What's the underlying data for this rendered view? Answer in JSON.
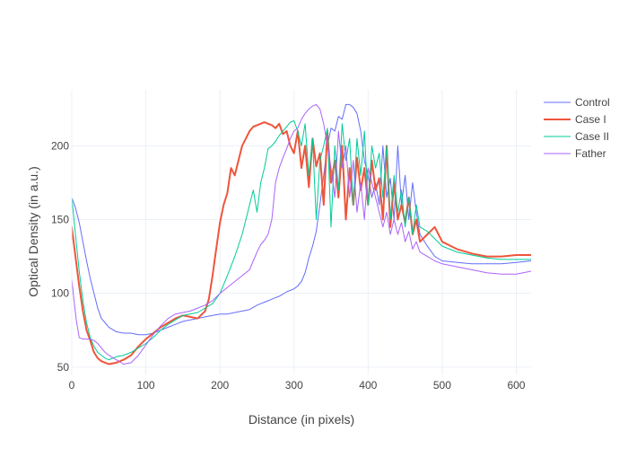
{
  "chart_data": {
    "type": "line",
    "title": "",
    "xlabel": "Distance (in pixels)",
    "ylabel": "Optical Density (in a.u.)",
    "xlim": [
      0,
      620
    ],
    "ylim": [
      45,
      238
    ],
    "xticks": [
      0,
      100,
      200,
      300,
      400,
      500,
      600
    ],
    "yticks": [
      50,
      100,
      150,
      200
    ],
    "grid": true,
    "legend_position": "top-right",
    "series": [
      {
        "name": "Control",
        "color": "#636efa",
        "width": 1,
        "x": [
          0,
          5,
          10,
          15,
          20,
          25,
          30,
          35,
          40,
          45,
          50,
          60,
          70,
          80,
          90,
          100,
          110,
          120,
          130,
          140,
          150,
          160,
          170,
          180,
          190,
          200,
          210,
          220,
          230,
          240,
          250,
          260,
          270,
          280,
          290,
          300,
          305,
          310,
          315,
          320,
          325,
          330,
          335,
          340,
          345,
          350,
          355,
          360,
          365,
          370,
          375,
          380,
          385,
          390,
          395,
          400,
          405,
          410,
          415,
          420,
          425,
          430,
          435,
          440,
          445,
          450,
          455,
          460,
          465,
          470,
          480,
          490,
          500,
          520,
          540,
          560,
          580,
          600,
          620
        ],
        "y": [
          165,
          158,
          148,
          135,
          122,
          110,
          100,
          90,
          83,
          80,
          77,
          74,
          73,
          73,
          72,
          72,
          73,
          75,
          77,
          79,
          81,
          82,
          83,
          84,
          85,
          86,
          86,
          87,
          88,
          89,
          92,
          94,
          96,
          98,
          101,
          103,
          105,
          108,
          114,
          124,
          132,
          142,
          160,
          180,
          200,
          212,
          210,
          220,
          218,
          228,
          228,
          226,
          222,
          210,
          190,
          180,
          165,
          175,
          160,
          200,
          165,
          178,
          150,
          200,
          160,
          180,
          150,
          175,
          155,
          140,
          132,
          125,
          122,
          121,
          120,
          120,
          120,
          121,
          122
        ]
      },
      {
        "name": "Case I",
        "color": "#ef553b",
        "width": 2,
        "x": [
          0,
          5,
          10,
          15,
          20,
          25,
          30,
          35,
          40,
          45,
          50,
          60,
          70,
          80,
          90,
          100,
          110,
          120,
          130,
          140,
          150,
          160,
          170,
          180,
          185,
          190,
          195,
          200,
          205,
          210,
          215,
          220,
          225,
          230,
          235,
          240,
          245,
          250,
          255,
          260,
          265,
          270,
          275,
          280,
          285,
          290,
          295,
          300,
          305,
          310,
          315,
          320,
          325,
          330,
          335,
          340,
          345,
          350,
          355,
          360,
          365,
          370,
          375,
          380,
          385,
          390,
          395,
          400,
          405,
          410,
          415,
          420,
          425,
          430,
          435,
          440,
          445,
          450,
          455,
          460,
          465,
          470,
          480,
          490,
          500,
          520,
          540,
          560,
          580,
          600,
          620
        ],
        "y": [
          145,
          125,
          105,
          88,
          75,
          68,
          60,
          56,
          54,
          53,
          52,
          53,
          55,
          58,
          64,
          69,
          73,
          77,
          80,
          83,
          85,
          84,
          83,
          88,
          96,
          112,
          130,
          148,
          160,
          168,
          185,
          180,
          190,
          200,
          205,
          210,
          213,
          214,
          215,
          216,
          215,
          214,
          212,
          215,
          208,
          210,
          200,
          195,
          210,
          185,
          200,
          172,
          205,
          186,
          195,
          160,
          210,
          175,
          190,
          165,
          200,
          150,
          185,
          160,
          192,
          170,
          185,
          160,
          190,
          170,
          178,
          150,
          200,
          145,
          175,
          150,
          160,
          148,
          165,
          140,
          150,
          135,
          140,
          145,
          135,
          130,
          127,
          125,
          125,
          126,
          126
        ]
      },
      {
        "name": "Case II",
        "color": "#00cc96",
        "width": 1,
        "x": [
          0,
          5,
          10,
          15,
          20,
          25,
          30,
          35,
          40,
          45,
          50,
          60,
          70,
          80,
          90,
          100,
          110,
          120,
          130,
          140,
          150,
          160,
          170,
          180,
          190,
          200,
          210,
          220,
          230,
          240,
          245,
          250,
          255,
          260,
          265,
          270,
          275,
          280,
          285,
          290,
          295,
          300,
          305,
          310,
          315,
          320,
          325,
          330,
          335,
          340,
          345,
          350,
          355,
          360,
          365,
          370,
          375,
          380,
          385,
          390,
          395,
          400,
          405,
          410,
          415,
          420,
          425,
          430,
          435,
          440,
          445,
          450,
          455,
          460,
          465,
          470,
          480,
          490,
          500,
          520,
          540,
          560,
          580,
          600,
          620
        ],
        "y": [
          165,
          140,
          115,
          95,
          80,
          70,
          64,
          60,
          58,
          56,
          55,
          57,
          58,
          60,
          63,
          66,
          70,
          75,
          79,
          82,
          85,
          86,
          87,
          90,
          93,
          100,
          112,
          125,
          140,
          160,
          170,
          155,
          175,
          185,
          198,
          200,
          203,
          207,
          210,
          213,
          216,
          217,
          210,
          200,
          215,
          180,
          205,
          150,
          190,
          200,
          212,
          145,
          200,
          170,
          215,
          190,
          205,
          160,
          205,
          180,
          210,
          160,
          200,
          185,
          195,
          165,
          200,
          150,
          180,
          155,
          170,
          145,
          165,
          140,
          160,
          145,
          142,
          137,
          132,
          128,
          126,
          124,
          123,
          123,
          123
        ]
      },
      {
        "name": "Father",
        "color": "#ab63fa",
        "width": 1,
        "x": [
          0,
          3,
          6,
          10,
          15,
          20,
          25,
          30,
          35,
          40,
          45,
          50,
          60,
          70,
          80,
          90,
          100,
          110,
          120,
          130,
          140,
          150,
          160,
          170,
          180,
          190,
          200,
          210,
          220,
          230,
          240,
          245,
          250,
          255,
          260,
          265,
          270,
          275,
          280,
          285,
          290,
          295,
          300,
          305,
          310,
          315,
          320,
          325,
          330,
          335,
          340,
          345,
          350,
          355,
          360,
          365,
          370,
          375,
          380,
          385,
          390,
          395,
          400,
          405,
          410,
          415,
          420,
          425,
          430,
          435,
          440,
          445,
          450,
          455,
          460,
          465,
          470,
          480,
          490,
          500,
          520,
          540,
          560,
          580,
          600,
          620
        ],
        "y": [
          110,
          95,
          82,
          70,
          69,
          69,
          69,
          68,
          66,
          63,
          60,
          58,
          55,
          52,
          53,
          58,
          65,
          72,
          78,
          83,
          86,
          87,
          88,
          90,
          92,
          95,
          100,
          104,
          108,
          112,
          116,
          122,
          128,
          133,
          136,
          140,
          150,
          175,
          185,
          192,
          198,
          205,
          210,
          212,
          218,
          222,
          225,
          227,
          228,
          225,
          215,
          200,
          185,
          165,
          210,
          185,
          200,
          165,
          190,
          155,
          175,
          150,
          185,
          175,
          165,
          155,
          145,
          155,
          140,
          150,
          140,
          148,
          135,
          142,
          130,
          135,
          128,
          125,
          122,
          120,
          118,
          116,
          114,
          113,
          113,
          115
        ]
      }
    ]
  }
}
